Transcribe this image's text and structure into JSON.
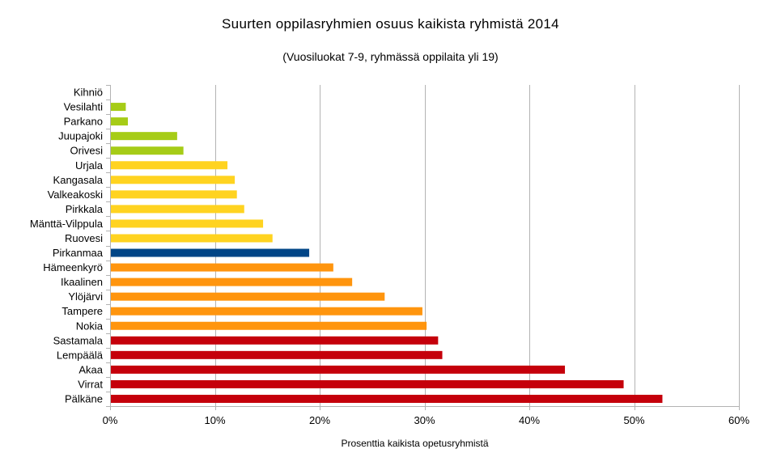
{
  "chart_data": {
    "type": "bar",
    "orientation": "horizontal",
    "title": "Suurten oppilasryhmien osuus kaikista ryhmistä 2014",
    "subtitle": "(Vuosiluokat 7-9, ryhmässä oppilaita yli 19)",
    "xlabel": "Prosenttia kaikista opetusryhmistä",
    "ylabel": "",
    "xlim": [
      0,
      60
    ],
    "x_ticks": [
      "0%",
      "10%",
      "20%",
      "30%",
      "40%",
      "50%",
      "60%"
    ],
    "grid": "vertical",
    "categories": [
      "Kihniö",
      "Vesilahti",
      "Parkano",
      "Juupajoki",
      "Orivesi",
      "Urjala",
      "Kangasala",
      "Valkeakoski",
      "Pirkkala",
      "Mänttä-Vilppula",
      "Ruovesi",
      "Pirkanmaa",
      "Hämeenkyrö",
      "Ikaalinen",
      "Ylöjärvi",
      "Tampere",
      "Nokia",
      "Sastamala",
      "Lempäälä",
      "Akaa",
      "Virrat",
      "Pälkäne"
    ],
    "values": [
      0,
      1.5,
      1.7,
      6.4,
      7.0,
      11.2,
      11.9,
      12.1,
      12.8,
      14.6,
      15.5,
      19.0,
      21.3,
      23.1,
      26.2,
      29.8,
      30.2,
      31.3,
      31.7,
      43.4,
      49.0,
      52.7
    ],
    "colors": [
      "#a6cc17",
      "#a6cc17",
      "#a6cc17",
      "#a6cc17",
      "#a6cc17",
      "#ffd320",
      "#ffd320",
      "#ffd320",
      "#ffd320",
      "#ffd320",
      "#ffd320",
      "#004586",
      "#ff950e",
      "#ff950e",
      "#ff950e",
      "#ff950e",
      "#ff950e",
      "#c5000b",
      "#c5000b",
      "#c5000b",
      "#c5000b",
      "#c5000b"
    ]
  }
}
